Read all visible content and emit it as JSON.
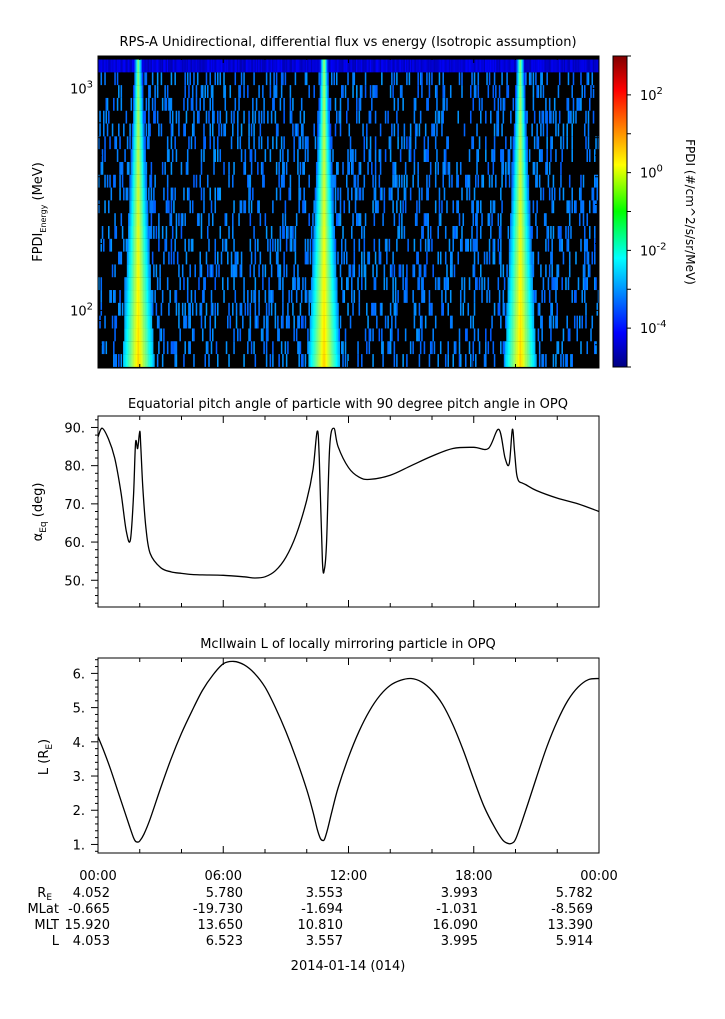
{
  "panels": {
    "spectrogram": {
      "title": "RPS-A Unidirectional, differential flux vs energy (Isotropic assumption)",
      "ylabel_main": "FPDI",
      "ylabel_sub": "Energy",
      "ylabel_unit": " (MeV)",
      "y_ticks": [
        {
          "base": "10",
          "exp": "2"
        },
        {
          "base": "10",
          "exp": "3"
        }
      ],
      "colorbar_label": "FPDI (#/cm^2/s/sr/MeV)",
      "colorbar_ticks": [
        {
          "base": "10",
          "exp": "-4"
        },
        {
          "base": "10",
          "exp": "-2"
        },
        {
          "base": "10",
          "exp": "0"
        },
        {
          "base": "10",
          "exp": "2"
        }
      ]
    },
    "pitch": {
      "title": "Equatorial pitch angle of particle with 90 degree pitch angle in OPQ",
      "ylabel_main": "α",
      "ylabel_sub": "Eq",
      "ylabel_unit": " (deg)",
      "y_ticks": [
        "50.",
        "60.",
        "70.",
        "80.",
        "90."
      ]
    },
    "lshell": {
      "title": "McIlwain L of locally mirroring particle in OPQ",
      "ylabel_main": "L (R",
      "ylabel_sub": "E",
      "ylabel_unit": ")",
      "y_ticks": [
        "1.",
        "2.",
        "3.",
        "4.",
        "5.",
        "6."
      ]
    }
  },
  "footer": {
    "row_labels": [
      {
        "main": "R",
        "sub": "E"
      },
      {
        "main": "MLat",
        "sub": ""
      },
      {
        "main": "MLT",
        "sub": ""
      },
      {
        "main": "L",
        "sub": ""
      }
    ],
    "columns": [
      {
        "time": "00:00",
        "values": [
          "4.052",
          "-0.665",
          "15.920",
          "4.053"
        ]
      },
      {
        "time": "06:00",
        "values": [
          "5.780",
          "-19.730",
          "13.650",
          "6.523"
        ]
      },
      {
        "time": "12:00",
        "values": [
          "3.553",
          "-1.694",
          "10.810",
          "3.557"
        ]
      },
      {
        "time": "18:00",
        "values": [
          "3.993",
          "-1.031",
          "16.090",
          "3.995"
        ]
      },
      {
        "time": "00:00",
        "values": [
          "5.782",
          "-8.569",
          "13.390",
          "5.914"
        ]
      }
    ],
    "date_label": "2014-01-14 (014)"
  },
  "chart_data": [
    {
      "type": "heatmap",
      "title": "RPS-A Unidirectional, differential flux vs energy (Isotropic assumption)",
      "ylabel": "FPDI Energy (MeV)",
      "y_scale": "log",
      "ylim": [
        55,
        1400
      ],
      "x_range_hours": [
        0,
        24
      ],
      "colorbar": {
        "label": "FPDI (#/cm^2/s/sr/MeV)",
        "scale": "log",
        "range_exp": [
          -5,
          3
        ]
      },
      "belt_crossings_hours": [
        1.9,
        10.8,
        20.2
      ],
      "background_log_flux": -4
    },
    {
      "type": "line",
      "title": "Equatorial pitch angle of particle with 90 degree pitch angle in OPQ",
      "ylabel": "αEq (deg)",
      "ylim": [
        43,
        93
      ],
      "x": [
        0,
        0.2,
        0.5,
        0.8,
        1.1,
        1.35,
        1.55,
        1.7,
        1.8,
        1.9,
        2.0,
        2.05,
        2.15,
        2.3,
        2.5,
        3.0,
        3.5,
        4.0,
        4.5,
        5.0,
        6.0,
        7.0,
        7.5,
        8.0,
        8.5,
        9.0,
        9.5,
        10.0,
        10.3,
        10.5,
        10.6,
        10.75,
        10.85,
        10.95,
        11.1,
        11.3,
        11.5,
        12.0,
        12.5,
        13.0,
        14.0,
        15.0,
        16.0,
        17.0,
        18.0,
        18.7,
        19.2,
        19.5,
        19.7,
        19.85,
        19.95,
        20.05,
        20.15,
        20.3,
        20.5,
        21.0,
        22.0,
        23.0,
        24.0
      ],
      "y": [
        87.5,
        89.8,
        87.0,
        82.0,
        73.0,
        63.0,
        60.5,
        72.0,
        86.0,
        84.5,
        89.0,
        85.0,
        74.0,
        63.5,
        57.0,
        53.3,
        52.2,
        51.8,
        51.5,
        51.4,
        51.3,
        50.9,
        50.6,
        50.9,
        52.5,
        56.0,
        62.0,
        71.0,
        79.0,
        89.0,
        82.0,
        55.0,
        53.0,
        60.0,
        85.0,
        89.8,
        85.0,
        79.5,
        77.0,
        76.4,
        77.5,
        80.0,
        82.5,
        84.5,
        84.8,
        84.5,
        89.5,
        82.0,
        80.5,
        89.5,
        84.0,
        78.0,
        76.0,
        75.5,
        75.0,
        73.5,
        71.5,
        70.0,
        68.0
      ]
    },
    {
      "type": "line",
      "title": "McIlwain L of locally mirroring particle in OPQ",
      "ylabel": "L (RE)",
      "ylim": [
        0.75,
        6.45
      ],
      "x": [
        0,
        0.3,
        0.6,
        0.9,
        1.2,
        1.5,
        1.7,
        1.8,
        1.9,
        2.0,
        2.2,
        2.5,
        3.0,
        3.5,
        4.0,
        4.5,
        5.0,
        5.5,
        6.0,
        6.5,
        7.0,
        7.5,
        8.0,
        8.5,
        9.0,
        9.5,
        10.0,
        10.3,
        10.5,
        10.65,
        10.75,
        10.85,
        11.0,
        11.2,
        11.5,
        12.0,
        12.5,
        13.0,
        13.5,
        14.0,
        14.5,
        15.0,
        15.5,
        16.0,
        16.5,
        17.0,
        17.5,
        18.0,
        18.5,
        19.0,
        19.4,
        19.7,
        19.9,
        20.0,
        20.1,
        20.3,
        20.6,
        21.0,
        21.5,
        22.0,
        22.5,
        23.0,
        23.5,
        24.0
      ],
      "y": [
        4.15,
        3.7,
        3.2,
        2.65,
        2.1,
        1.55,
        1.2,
        1.09,
        1.07,
        1.1,
        1.3,
        1.75,
        2.65,
        3.5,
        4.25,
        4.9,
        5.5,
        5.95,
        6.28,
        6.35,
        6.25,
        6.0,
        5.6,
        5.0,
        4.3,
        3.5,
        2.6,
        1.95,
        1.45,
        1.18,
        1.12,
        1.15,
        1.45,
        1.95,
        2.65,
        3.55,
        4.3,
        4.9,
        5.35,
        5.65,
        5.8,
        5.85,
        5.75,
        5.5,
        5.1,
        4.5,
        3.75,
        2.9,
        2.1,
        1.5,
        1.12,
        1.02,
        1.06,
        1.15,
        1.3,
        1.65,
        2.2,
        2.95,
        3.85,
        4.6,
        5.2,
        5.6,
        5.82,
        5.85
      ]
    }
  ]
}
